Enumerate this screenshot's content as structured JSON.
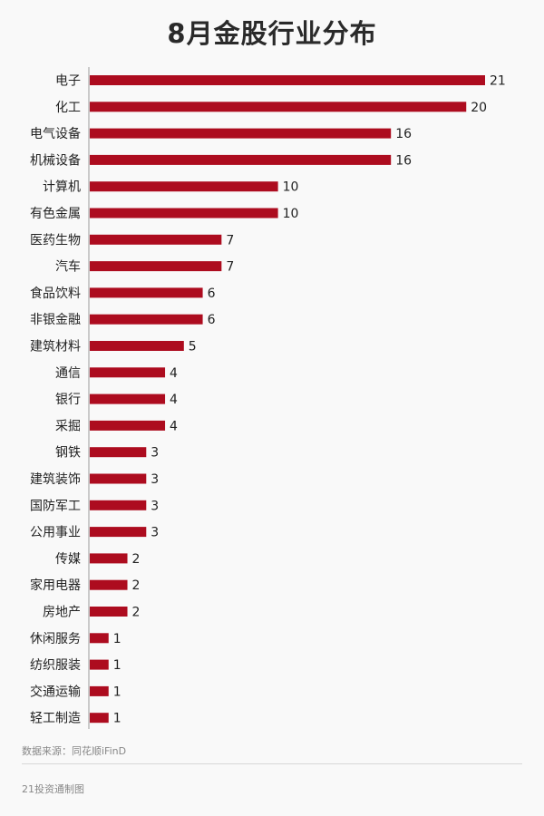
{
  "page": {
    "title": "8月金股行业分布",
    "source": "数据来源：同花顺iFinD",
    "footer": "21投资通制图"
  },
  "colors": {
    "bar": "#ad0c1f",
    "axis": "#9a9a9a",
    "label": "#222222"
  },
  "chart_data": {
    "type": "bar",
    "orientation": "horizontal",
    "title": "8月金股行业分布",
    "categories": [
      "电子",
      "化工",
      "电气设备",
      "机械设备",
      "计算机",
      "有色金属",
      "医药生物",
      "汽车",
      "食品饮料",
      "非银金融",
      "建筑材料",
      "通信",
      "银行",
      "采掘",
      "钢铁",
      "建筑装饰",
      "国防军工",
      "公用事业",
      "传媒",
      "家用电器",
      "房地产",
      "休闲服务",
      "纺织服装",
      "交通运输",
      "轻工制造"
    ],
    "values": [
      21,
      20,
      16,
      16,
      10,
      10,
      7,
      7,
      6,
      6,
      5,
      4,
      4,
      4,
      3,
      3,
      3,
      3,
      2,
      2,
      2,
      1,
      1,
      1,
      1
    ],
    "data_labels": true,
    "grid": false,
    "xlim": [
      0,
      21
    ]
  }
}
